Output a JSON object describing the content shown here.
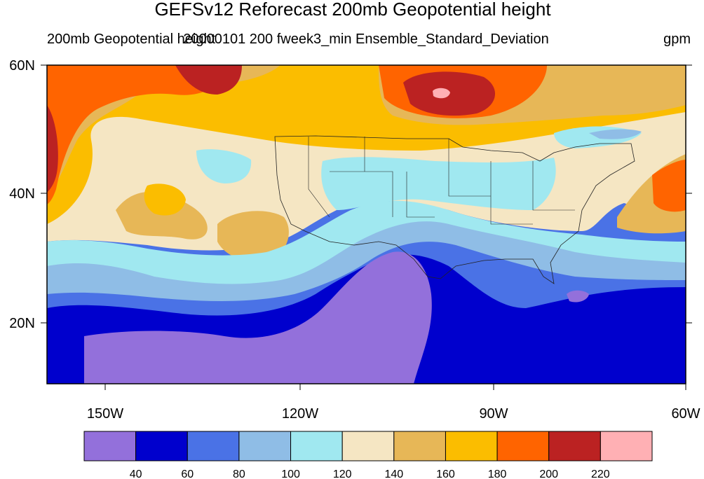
{
  "title": "GEFSv12 Reforecast 200mb Geopotential height",
  "subtitle_left": "200mb Geopotential height",
  "subtitle_center": "20000101 200 fweek3_min Ensemble_Standard_Deviation",
  "subtitle_right": "gpm",
  "map": {
    "lat_ticks": [
      "60N",
      "40N",
      "20N"
    ],
    "lon_ticks": [
      "150W",
      "120W",
      "90W",
      "60W"
    ]
  },
  "colorbar": {
    "colors": [
      "#9370db",
      "#0000cd",
      "#4a72e6",
      "#8fbde6",
      "#a0e8f0",
      "#f5e6c3",
      "#e7b757",
      "#fbbd00",
      "#ff6400",
      "#bb2222",
      "#ffb0b4"
    ],
    "labels": [
      "40",
      "60",
      "80",
      "100",
      "120",
      "140",
      "160",
      "180",
      "200",
      "220"
    ]
  }
}
